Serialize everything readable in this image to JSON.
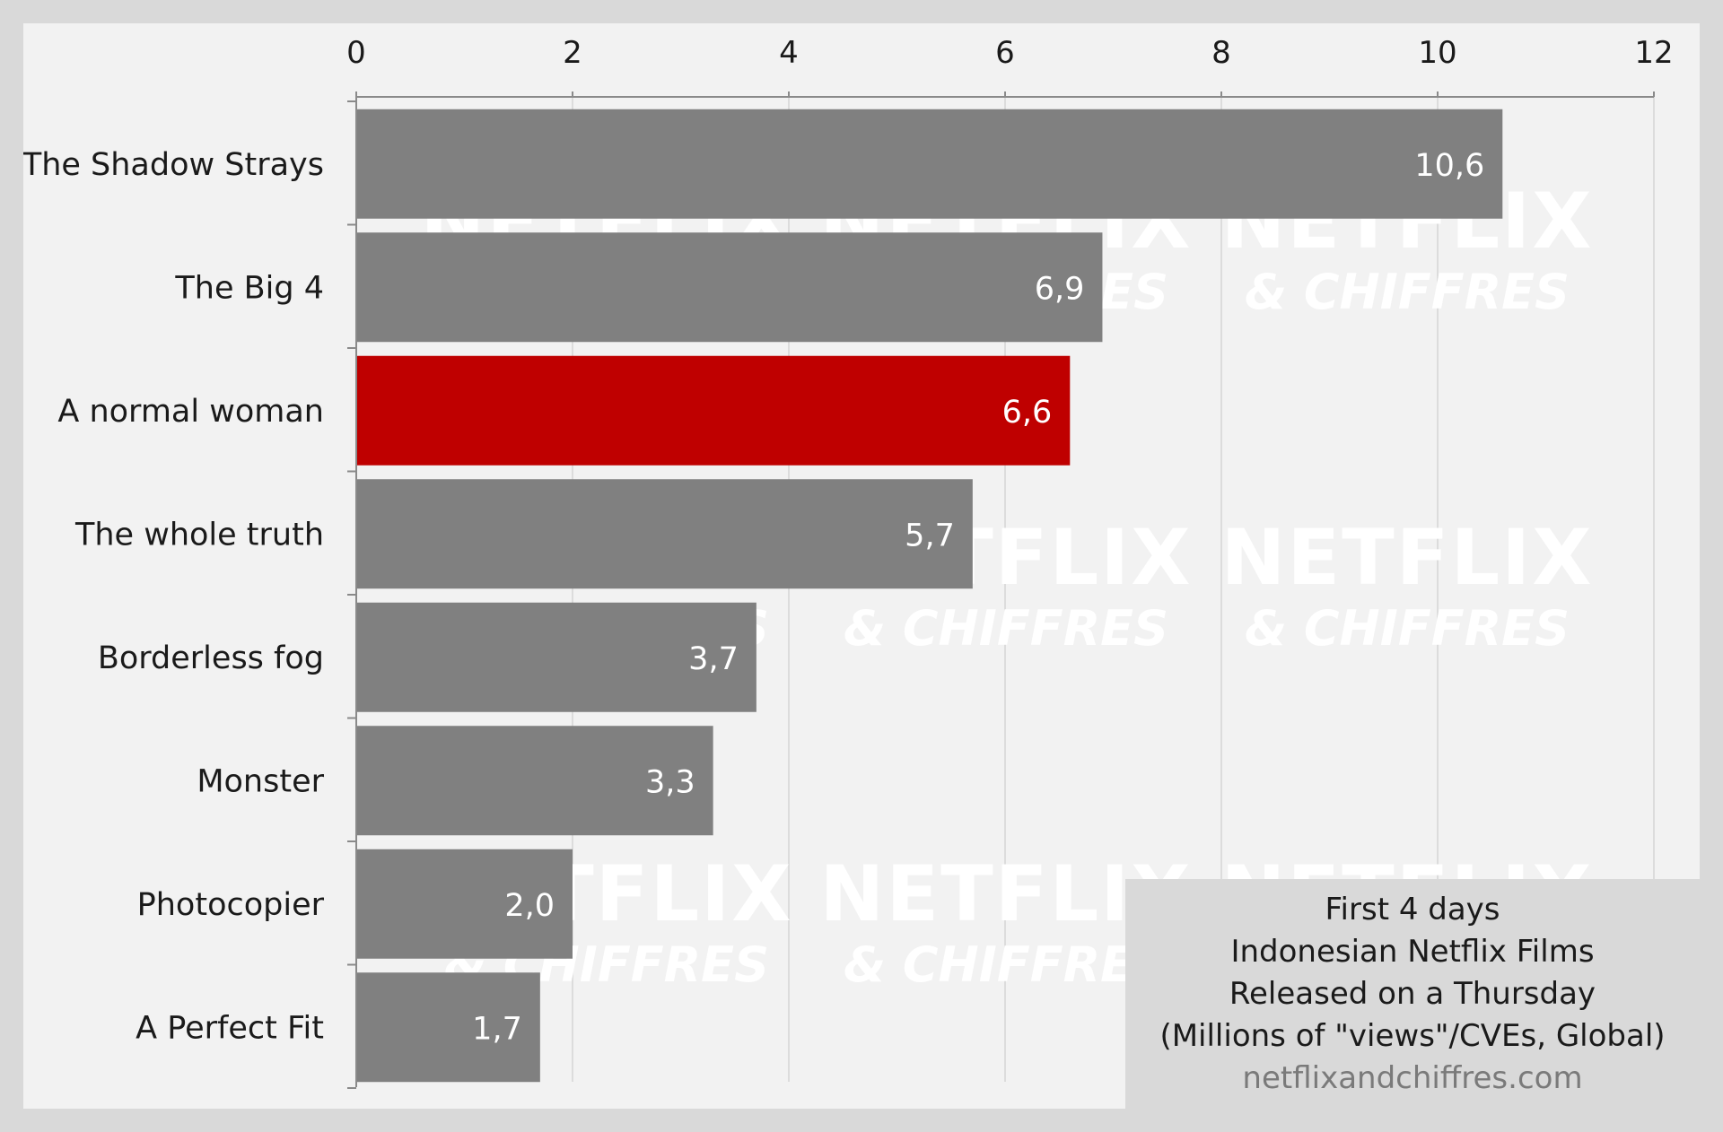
{
  "chart_data": {
    "type": "bar",
    "orientation": "horizontal",
    "categories": [
      "The Shadow Strays",
      "The Big 4",
      "A normal woman",
      "The whole truth",
      "Borderless fog",
      "Monster",
      "Photocopier",
      "A Perfect Fit"
    ],
    "values": [
      10.6,
      6.9,
      6.6,
      5.7,
      3.7,
      3.3,
      2.0,
      1.7
    ],
    "value_labels": [
      "10,6",
      "6,9",
      "6,6",
      "5,7",
      "3,7",
      "3,3",
      "2,0",
      "1,7"
    ],
    "highlight_index": 2,
    "xlim": [
      0,
      12
    ],
    "xticks": [
      0,
      2,
      4,
      6,
      8,
      10,
      12
    ],
    "xtick_labels": [
      "0",
      "2",
      "4",
      "6",
      "8",
      "10",
      "12"
    ],
    "x_axis_position": "top",
    "grid": true,
    "legend_position": "bottom-right",
    "colors": {
      "bar": "#808080",
      "highlight": "#bf0000",
      "grid": "#d4d4d4",
      "background": "#f2f2f2",
      "frame": "#d9d9d9"
    }
  },
  "legend_box": {
    "lines": [
      "First 4 days",
      "Indonesian Netflix Films",
      "Released on a Thursday",
      "(Millions of \"views\"/CVEs, Global)"
    ],
    "source": "netflixandchiffres.com"
  },
  "watermark": {
    "title": "NETFLIX",
    "subtitle": "& CHIFFRES"
  }
}
